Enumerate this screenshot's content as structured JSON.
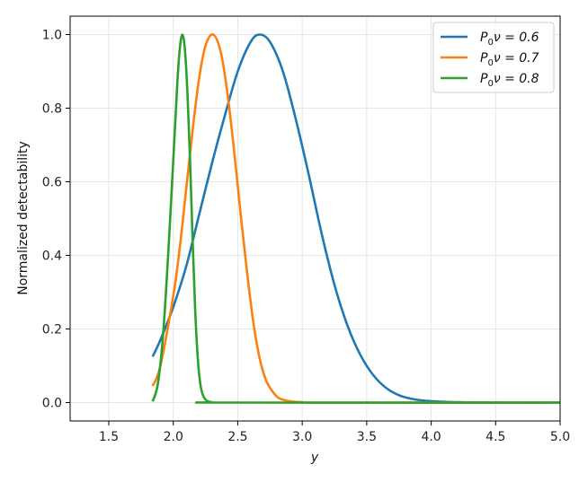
{
  "chart_data": {
    "type": "line",
    "xlabel": "y",
    "ylabel": "Normalized detectability",
    "xlim": [
      1.2,
      5.0
    ],
    "ylim": [
      -0.05,
      1.05
    ],
    "xticks": [
      "1.5",
      "2.0",
      "2.5",
      "3.0",
      "3.5",
      "4.0",
      "4.5",
      "5.0"
    ],
    "yticks": [
      "0.0",
      "0.2",
      "0.4",
      "0.6",
      "0.8",
      "1.0"
    ],
    "grid": true,
    "legend_position": "top-right",
    "series": [
      {
        "name": "P₀ν = 0.6",
        "legend_main": "P",
        "legend_sub": "0",
        "legend_rest": "ν = 0.6",
        "color": "#1f77b4",
        "x": [
          1.84,
          1.9,
          2.0,
          2.1,
          2.2,
          2.3,
          2.4,
          2.5,
          2.6,
          2.67,
          2.75,
          2.85,
          2.95,
          3.05,
          3.15,
          3.25,
          3.35,
          3.45,
          3.55,
          3.65,
          3.75,
          3.85,
          3.95,
          4.1,
          4.3,
          4.6,
          5.0
        ],
        "y": [
          0.125,
          0.17,
          0.26,
          0.37,
          0.51,
          0.65,
          0.78,
          0.9,
          0.98,
          1.0,
          0.98,
          0.9,
          0.77,
          0.62,
          0.46,
          0.32,
          0.21,
          0.13,
          0.075,
          0.04,
          0.02,
          0.01,
          0.005,
          0.002,
          0.0005,
          0.0,
          0.0
        ]
      },
      {
        "name": "P₀ν = 0.7",
        "legend_main": "P",
        "legend_sub": "0",
        "legend_rest": "ν = 0.7",
        "color": "#ff7f0e",
        "x": [
          1.84,
          1.9,
          2.0,
          2.05,
          2.1,
          2.15,
          2.2,
          2.25,
          2.31,
          2.37,
          2.42,
          2.47,
          2.52,
          2.57,
          2.62,
          2.67,
          2.72,
          2.77,
          2.82,
          2.9,
          3.0,
          3.2,
          5.0
        ],
        "y": [
          0.045,
          0.1,
          0.29,
          0.42,
          0.58,
          0.74,
          0.88,
          0.97,
          1.0,
          0.95,
          0.84,
          0.69,
          0.52,
          0.36,
          0.22,
          0.12,
          0.06,
          0.03,
          0.012,
          0.004,
          0.001,
          0.0,
          0.0
        ]
      },
      {
        "name": "P₀ν = 0.8",
        "legend_main": "P",
        "legend_sub": "0",
        "legend_rest": "ν = 0.8",
        "color": "#2ca02c",
        "x": [
          1.84,
          1.88,
          1.92,
          1.96,
          2.0,
          2.03,
          2.05,
          2.07,
          2.09,
          2.11,
          2.13,
          2.15,
          2.17,
          2.19,
          2.21,
          2.23,
          2.26,
          2.3,
          2.4,
          5.0
        ],
        "y": [
          0.003,
          0.05,
          0.18,
          0.4,
          0.66,
          0.86,
          0.96,
          1.0,
          0.96,
          0.84,
          0.66,
          0.44,
          0.25,
          0.12,
          0.05,
          0.02,
          0.005,
          0.001,
          0.0,
          0.0
        ]
      }
    ]
  }
}
